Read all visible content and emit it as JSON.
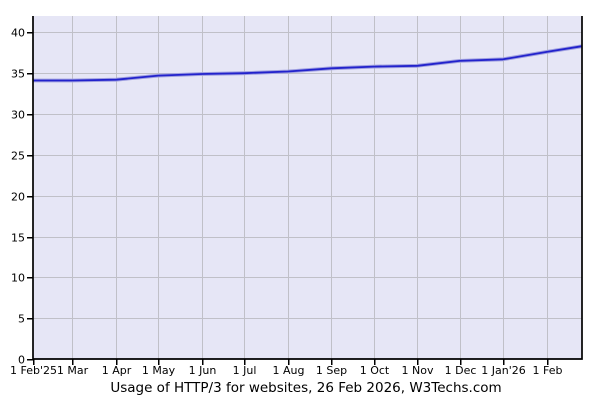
{
  "chart_data": {
    "type": "line",
    "title": "Usage of HTTP/3 for websites, 26 Feb 2026, W3Techs.com",
    "xlabel": "",
    "ylabel": "",
    "x_axis": {
      "unit": "date",
      "total_days": 390,
      "ticks": [
        {
          "label": "1 Feb'25",
          "day": 0
        },
        {
          "label": "1 Mar",
          "day": 28
        },
        {
          "label": "1 Apr",
          "day": 59
        },
        {
          "label": "1 May",
          "day": 89
        },
        {
          "label": "1 Jun",
          "day": 120
        },
        {
          "label": "1 Jul",
          "day": 150
        },
        {
          "label": "1 Aug",
          "day": 181
        },
        {
          "label": "1 Sep",
          "day": 212
        },
        {
          "label": "1 Oct",
          "day": 242
        },
        {
          "label": "1 Nov",
          "day": 273
        },
        {
          "label": "1 Dec",
          "day": 303
        },
        {
          "label": "1 Jan'26",
          "day": 334
        },
        {
          "label": "1 Feb",
          "day": 365
        }
      ]
    },
    "y_axis": {
      "ticks": [
        0,
        5,
        10,
        15,
        20,
        25,
        30,
        35,
        40
      ],
      "range": [
        0,
        42
      ]
    },
    "grid": true,
    "legend": null,
    "series": [
      {
        "name": "HTTP/3 usage",
        "points": [
          {
            "label": "1 Feb'25",
            "day": 0,
            "value": 34.1
          },
          {
            "label": "1 Mar'25",
            "day": 28,
            "value": 34.1
          },
          {
            "label": "1 Apr'25",
            "day": 59,
            "value": 34.2
          },
          {
            "label": "1 May'25",
            "day": 89,
            "value": 34.7
          },
          {
            "label": "1 Jun'25",
            "day": 120,
            "value": 34.9
          },
          {
            "label": "1 Jul'25",
            "day": 150,
            "value": 35.0
          },
          {
            "label": "1 Aug'25",
            "day": 181,
            "value": 35.2
          },
          {
            "label": "1 Sep'25",
            "day": 212,
            "value": 35.6
          },
          {
            "label": "1 Oct'25",
            "day": 242,
            "value": 35.8
          },
          {
            "label": "1 Nov'25",
            "day": 273,
            "value": 35.9
          },
          {
            "label": "1 Dec'25",
            "day": 303,
            "value": 36.5
          },
          {
            "label": "1 Jan'26",
            "day": 334,
            "value": 36.7
          },
          {
            "label": "1 Feb'26",
            "day": 365,
            "value": 37.6
          },
          {
            "label": "26 Feb'26",
            "day": 390,
            "value": 38.3
          }
        ]
      }
    ],
    "colors": {
      "line": "#2222cc",
      "line_glow": "#9f9fe0",
      "plot_background": "#e6e6f6",
      "grid": "#c0c0c8",
      "axis": "#000000",
      "text": "#000000",
      "page_background": "#ffffff"
    }
  }
}
